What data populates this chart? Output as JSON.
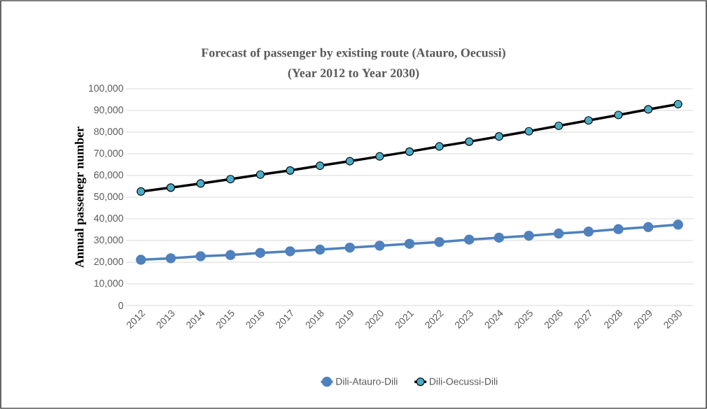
{
  "chart_data": {
    "type": "line",
    "title": "Forecast of passenger by existing route (Atauro, Oecussi)",
    "subtitle": "(Year 2012 to Year 2030)",
    "ylabel": "Annual passenegr number",
    "categories": [
      "2012",
      "2013",
      "2014",
      "2015",
      "2016",
      "2017",
      "2018",
      "2019",
      "2020",
      "2021",
      "2022",
      "2023",
      "2024",
      "2025",
      "2026",
      "2027",
      "2028",
      "2029",
      "2030"
    ],
    "series": [
      {
        "name": "Dili-Atauro-Dili",
        "color": "#4f81bd",
        "values": [
          21100,
          21800,
          22700,
          23300,
          24300,
          25000,
          25800,
          26700,
          27600,
          28500,
          29300,
          30400,
          31300,
          32200,
          33200,
          34100,
          35200,
          36200,
          37300
        ]
      },
      {
        "name": "Dili-Oecussi-Dili",
        "color": "#000000",
        "values": [
          52600,
          54400,
          56300,
          58300,
          60400,
          62300,
          64500,
          66600,
          68800,
          71000,
          73400,
          75600,
          78000,
          80400,
          82900,
          85400,
          87900,
          90500,
          92900
        ]
      }
    ],
    "ylim": [
      0,
      100000
    ],
    "yticks": [
      {
        "value": 0,
        "label": "0"
      },
      {
        "value": 10000,
        "label": "10,000"
      },
      {
        "value": 20000,
        "label": "20,000"
      },
      {
        "value": 30000,
        "label": "30,000"
      },
      {
        "value": 40000,
        "label": "40,000"
      },
      {
        "value": 50000,
        "label": "50,000"
      },
      {
        "value": 60000,
        "label": "60,000"
      },
      {
        "value": 70000,
        "label": "70,000"
      },
      {
        "value": 80000,
        "label": "80,000"
      },
      {
        "value": 90000,
        "label": "90,000"
      },
      {
        "value": 100000,
        "label": "100,000"
      }
    ],
    "grid": "y",
    "legend": "bottom",
    "marker": "circle",
    "line_style": "solid"
  }
}
